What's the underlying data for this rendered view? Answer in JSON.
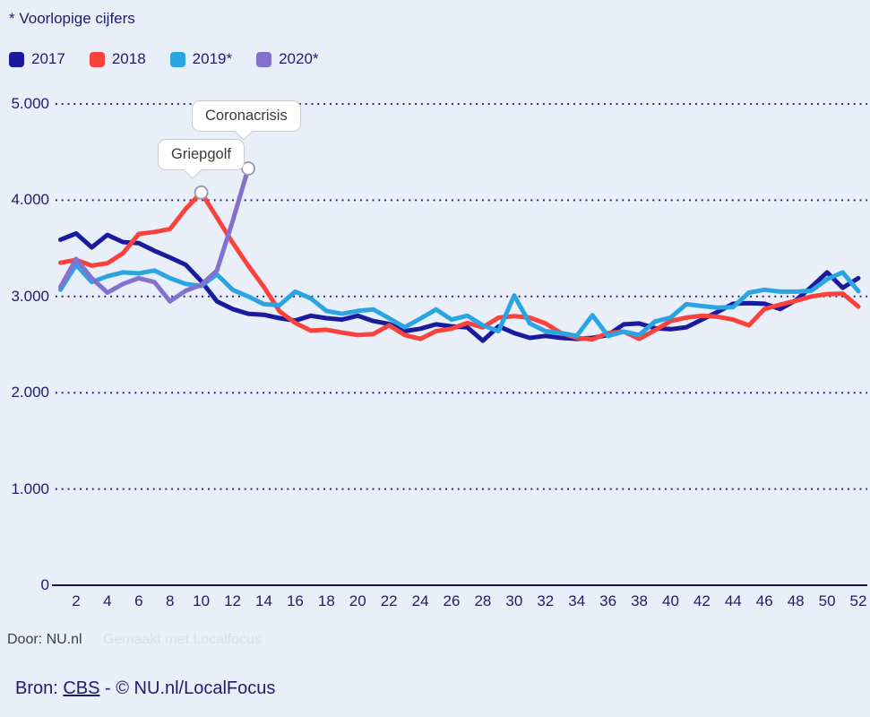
{
  "note": "* Voorlopige cijfers",
  "legend": [
    {
      "label": "2017",
      "color": "#1a1a9c"
    },
    {
      "label": "2018",
      "color": "#fa423c"
    },
    {
      "label": "2019*",
      "color": "#2aa5e2"
    },
    {
      "label": "2020*",
      "color": "#8372cd"
    }
  ],
  "chart_data": {
    "type": "line",
    "x_unit": "week",
    "x_range": [
      1,
      52
    ],
    "x_ticks": [
      2,
      4,
      6,
      8,
      10,
      12,
      14,
      16,
      18,
      20,
      22,
      24,
      26,
      28,
      30,
      32,
      34,
      36,
      38,
      40,
      42,
      44,
      46,
      48,
      50,
      52
    ],
    "ylim": [
      0,
      5000
    ],
    "y_ticks": [
      {
        "value": 0,
        "label": "0"
      },
      {
        "value": 1000,
        "label": "1.000"
      },
      {
        "value": 2000,
        "label": "2.000"
      },
      {
        "value": 3000,
        "label": "3.000"
      },
      {
        "value": 4000,
        "label": "4.000"
      },
      {
        "value": 5000,
        "label": "5.000"
      }
    ],
    "grid": "dotted-horizontal",
    "legend_position": "top-left",
    "series": [
      {
        "name": "2017",
        "color": "#1a1a9c",
        "values": [
          3590,
          3655,
          3510,
          3640,
          3565,
          3555,
          3475,
          3405,
          3330,
          3160,
          2950,
          2870,
          2820,
          2810,
          2775,
          2750,
          2800,
          2775,
          2760,
          2800,
          2745,
          2715,
          2640,
          2665,
          2710,
          2690,
          2680,
          2540,
          2690,
          2620,
          2570,
          2590,
          2570,
          2560,
          2570,
          2600,
          2710,
          2720,
          2670,
          2660,
          2680,
          2760,
          2840,
          2925,
          2930,
          2925,
          2870,
          2960,
          3100,
          3250,
          3090,
          3190
        ]
      },
      {
        "name": "2018",
        "color": "#fa423c",
        "values": [
          3350,
          3380,
          3320,
          3345,
          3450,
          3650,
          3670,
          3700,
          3910,
          4080,
          3820,
          3560,
          3320,
          3100,
          2845,
          2725,
          2645,
          2655,
          2625,
          2600,
          2610,
          2700,
          2600,
          2560,
          2640,
          2665,
          2725,
          2680,
          2780,
          2795,
          2780,
          2720,
          2620,
          2570,
          2555,
          2620,
          2635,
          2560,
          2650,
          2745,
          2780,
          2800,
          2790,
          2760,
          2700,
          2870,
          2915,
          2955,
          3000,
          3025,
          3030,
          2895
        ]
      },
      {
        "name": "2019*",
        "color": "#2aa5e2",
        "values": [
          3070,
          3330,
          3150,
          3210,
          3250,
          3240,
          3270,
          3190,
          3130,
          3110,
          3230,
          3070,
          3000,
          2920,
          2910,
          3050,
          2980,
          2850,
          2820,
          2850,
          2865,
          2775,
          2680,
          2770,
          2865,
          2760,
          2800,
          2700,
          2640,
          3010,
          2720,
          2640,
          2620,
          2590,
          2805,
          2590,
          2635,
          2600,
          2740,
          2780,
          2920,
          2900,
          2885,
          2890,
          3040,
          3070,
          3050,
          3050,
          3060,
          3180,
          3250,
          3055
        ]
      },
      {
        "name": "2020*",
        "color": "#8372cd",
        "values": [
          3100,
          3390,
          3190,
          3040,
          3130,
          3190,
          3150,
          2950,
          3060,
          3120,
          3270,
          3780,
          4330
        ]
      }
    ],
    "annotations": [
      {
        "label": "Griepgolf",
        "series": "2018",
        "week": 10,
        "value": 4080
      },
      {
        "label": "Coronacrisis",
        "series": "2020*",
        "week": 13,
        "value": 4330
      }
    ]
  },
  "footer": {
    "door": "Door: NU.nl",
    "watermark": "Gemaakt met Localfocus",
    "bron_prefix": "Bron: ",
    "bron_link": "CBS",
    "bron_suffix": " - © NU.nl/LocalFocus"
  }
}
